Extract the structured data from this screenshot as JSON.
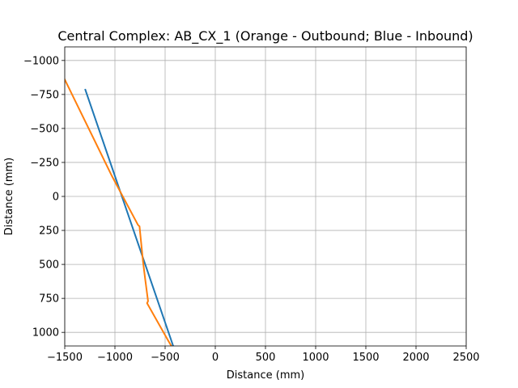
{
  "chart_data": {
    "type": "line",
    "title": "Central Complex: AB_CX_1 (Orange - Outbound; Blue - Inbound)",
    "xlabel": "Distance (mm)",
    "ylabel": "Distance (mm)",
    "xlim": [
      -1500,
      2500
    ],
    "ylim": [
      -1100,
      1100
    ],
    "y_inverted": true,
    "grid": true,
    "x_ticks": [
      -1500,
      -1000,
      -500,
      0,
      500,
      1000,
      1500,
      2000,
      2500
    ],
    "x_tick_labels": [
      "−1500",
      "−1000",
      "−500",
      "0",
      "500",
      "1000",
      "1500",
      "2000",
      "2500"
    ],
    "y_ticks": [
      -1000,
      -750,
      -500,
      -250,
      0,
      250,
      500,
      750,
      1000
    ],
    "y_tick_labels": [
      "−1000",
      "−750",
      "−500",
      "−250",
      "0",
      "250",
      "500",
      "750",
      "1000"
    ],
    "series": [
      {
        "color": "#1f77b4",
        "points": [
          [
            -1295,
            -785
          ],
          [
            -415,
            1110
          ]
        ]
      },
      {
        "color": "#ff7f0e",
        "points": [
          [
            -1500,
            -860
          ],
          [
            -1030,
            -150
          ],
          [
            -770,
            210
          ],
          [
            -755,
            220
          ],
          [
            -720,
            480
          ],
          [
            -700,
            600
          ],
          [
            -670,
            770
          ],
          [
            -680,
            785
          ],
          [
            -470,
            1060
          ],
          [
            -430,
            1110
          ]
        ]
      }
    ]
  }
}
